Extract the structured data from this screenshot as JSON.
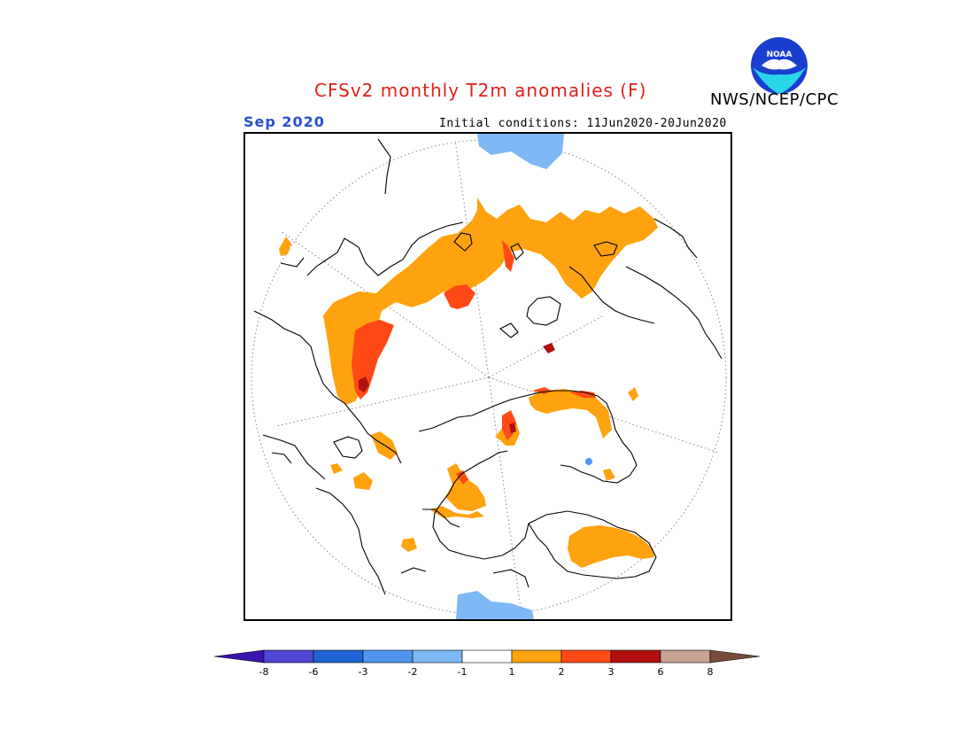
{
  "header": {
    "title": "CFSv2 monthly T2m anomalies (F)",
    "agency": "NWS/NCEP/CPC",
    "logo_text": "NOAA",
    "period": "Sep 2020",
    "initial_conditions": "Initial conditions: 11Jun2020-20Jun2020"
  },
  "colors": {
    "title": "#e0201a",
    "period": "#2a4fd6",
    "anom_1_2": "#ffa20f",
    "anom_2_3": "#ff4a16",
    "anom_3_6": "#b01010",
    "cold_1_2": "#7eb8f5",
    "cold_2_3": "#4f95ef"
  },
  "colorbar": {
    "bins": [
      {
        "color": "#3a14b0"
      },
      {
        "color": "#4f46d6"
      },
      {
        "color": "#1f63d4"
      },
      {
        "color": "#4f95ef"
      },
      {
        "color": "#7eb8f5"
      },
      {
        "color": "#ffffff"
      },
      {
        "color": "#ffa20f"
      },
      {
        "color": "#ff4a16"
      },
      {
        "color": "#b01010"
      },
      {
        "color": "#c9a294"
      },
      {
        "color": "#7a4a3a"
      }
    ],
    "tick_labels": [
      "-8",
      "-6",
      "-3",
      "-2",
      "-1",
      "1",
      "2",
      "3",
      "6",
      "8"
    ]
  }
}
